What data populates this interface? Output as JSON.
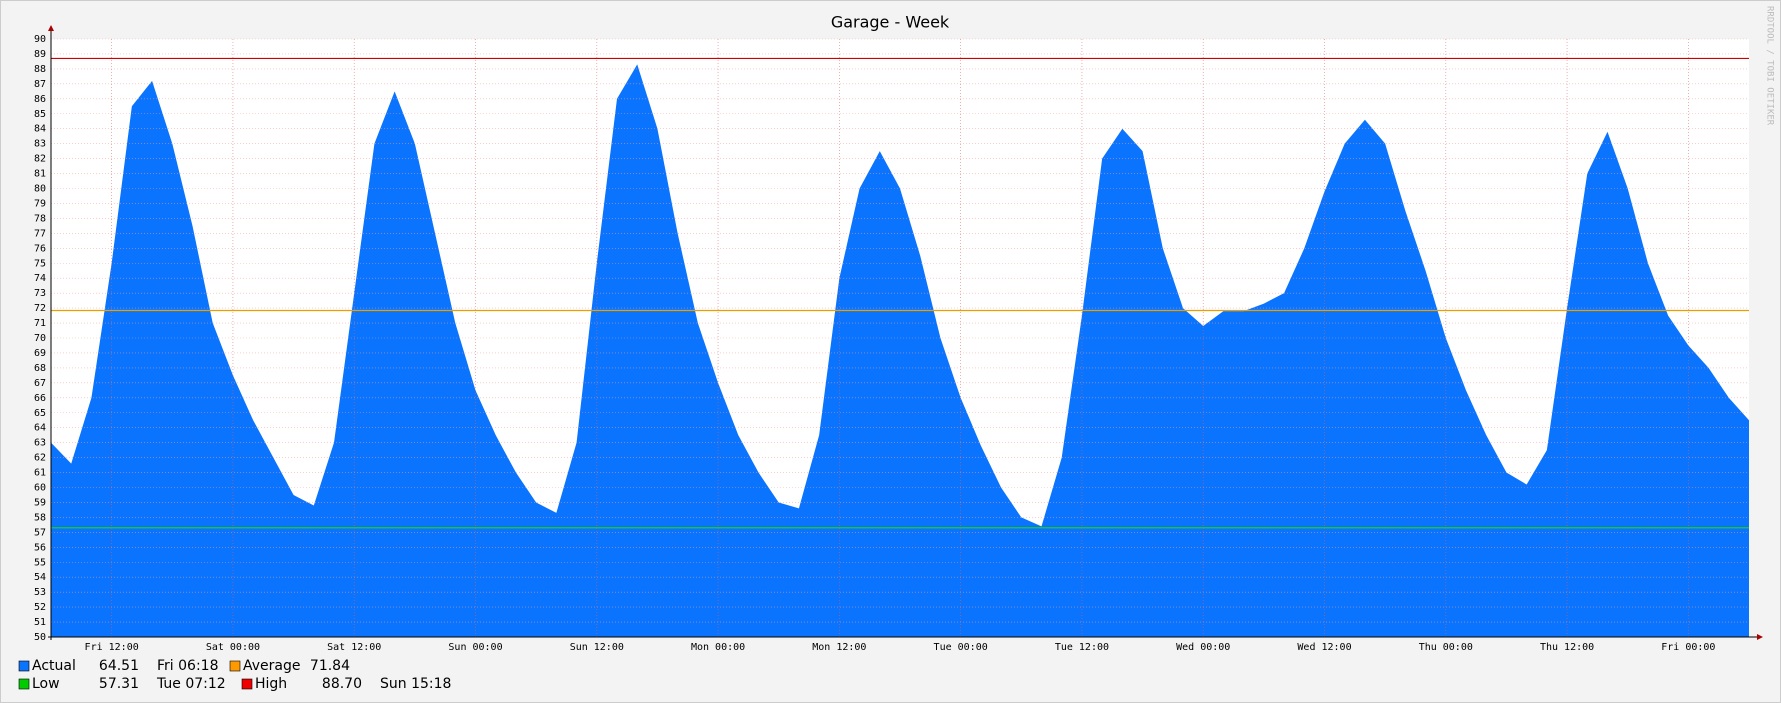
{
  "chart_data": {
    "type": "area",
    "title": "Garage - Week",
    "watermark": "RRDTOOL / TOBI OETIKER",
    "x": [
      "Fri 06:00",
      "Fri 08:00",
      "Fri 10:00",
      "Fri 12:00",
      "Fri 14:00",
      "Fri 16:00",
      "Fri 18:00",
      "Fri 20:00",
      "Fri 22:00",
      "Sat 00:00",
      "Sat 02:00",
      "Sat 04:00",
      "Sat 06:00",
      "Sat 08:00",
      "Sat 10:00",
      "Sat 12:00",
      "Sat 14:00",
      "Sat 16:00",
      "Sat 18:00",
      "Sat 20:00",
      "Sat 22:00",
      "Sun 00:00",
      "Sun 02:00",
      "Sun 04:00",
      "Sun 06:00",
      "Sun 08:00",
      "Sun 10:00",
      "Sun 12:00",
      "Sun 14:00",
      "Sun 16:00",
      "Sun 18:00",
      "Sun 20:00",
      "Sun 22:00",
      "Mon 00:00",
      "Mon 02:00",
      "Mon 04:00",
      "Mon 06:00",
      "Mon 08:00",
      "Mon 10:00",
      "Mon 12:00",
      "Mon 14:00",
      "Mon 16:00",
      "Mon 18:00",
      "Mon 20:00",
      "Mon 22:00",
      "Tue 00:00",
      "Tue 02:00",
      "Tue 04:00",
      "Tue 06:00",
      "Tue 08:00",
      "Tue 10:00",
      "Tue 12:00",
      "Tue 14:00",
      "Tue 16:00",
      "Tue 18:00",
      "Tue 20:00",
      "Tue 22:00",
      "Wed 00:00",
      "Wed 02:00",
      "Wed 04:00",
      "Wed 06:00",
      "Wed 08:00",
      "Wed 10:00",
      "Wed 12:00",
      "Wed 14:00",
      "Wed 16:00",
      "Wed 18:00",
      "Wed 20:00",
      "Wed 22:00",
      "Thu 00:00",
      "Thu 02:00",
      "Thu 04:00",
      "Thu 06:00",
      "Thu 08:00",
      "Thu 10:00",
      "Thu 12:00",
      "Thu 14:00",
      "Thu 16:00",
      "Thu 18:00",
      "Thu 20:00",
      "Thu 22:00",
      "Fri 00:00",
      "Fri 02:00",
      "Fri 04:00",
      "Fri 06:00"
    ],
    "series": [
      {
        "name": "Actual",
        "color": "#0b74ff",
        "current": 64.51,
        "time": "Fri 06:18",
        "values": [
          63,
          61.6,
          66,
          75,
          85.5,
          87.2,
          83,
          77.5,
          71,
          67.5,
          64.5,
          62,
          59.5,
          58.8,
          63,
          73,
          83,
          86.5,
          83,
          77,
          71,
          66.5,
          63.5,
          61,
          59,
          58.3,
          63,
          75,
          86,
          88.3,
          84,
          77,
          71,
          67,
          63.5,
          61,
          59,
          58.6,
          63.5,
          74,
          80,
          82.5,
          80,
          75.5,
          70,
          66,
          62.8,
          60,
          58,
          57.4,
          62,
          71.5,
          82,
          84,
          82.5,
          76,
          72,
          70.8,
          71.8,
          71.8,
          72.3,
          73,
          76,
          79.8,
          83,
          84.6,
          83,
          78.5,
          74.5,
          70,
          66.5,
          63.5,
          61,
          60.2,
          62.5,
          72,
          81,
          83.8,
          80,
          75,
          71.5,
          69.5,
          68,
          66,
          64.5
        ]
      }
    ],
    "hlines": [
      {
        "name": "Average",
        "color": "#ff9900",
        "line_color": "#e8a000",
        "value": 71.84
      },
      {
        "name": "Low",
        "color": "#00cc00",
        "line_color": "#22cc22",
        "value": 57.31,
        "time": "Tue 07:12"
      },
      {
        "name": "High",
        "color": "#ee0000",
        "line_color": "#cc0000",
        "value": 88.7,
        "value_label": "88.70",
        "time": "Sun 15:18"
      }
    ],
    "ylim": [
      50,
      90
    ],
    "yticks": [
      50,
      51,
      52,
      53,
      54,
      55,
      56,
      57,
      58,
      59,
      60,
      61,
      62,
      63,
      64,
      65,
      66,
      67,
      68,
      69,
      70,
      71,
      72,
      73,
      74,
      75,
      76,
      77,
      78,
      79,
      80,
      81,
      82,
      83,
      84,
      85,
      86,
      87,
      88,
      89,
      90
    ],
    "xticks": [
      "Fri 12:00",
      "Sat 00:00",
      "Sat 12:00",
      "Sun 00:00",
      "Sun 12:00",
      "Mon 00:00",
      "Mon 12:00",
      "Tue 00:00",
      "Tue 12:00",
      "Wed 00:00",
      "Wed 12:00",
      "Thu 00:00",
      "Thu 12:00",
      "Fri 00:00"
    ],
    "grid": true
  }
}
